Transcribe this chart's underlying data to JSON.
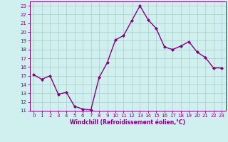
{
  "x": [
    0,
    1,
    2,
    3,
    4,
    5,
    6,
    7,
    8,
    9,
    10,
    11,
    12,
    13,
    14,
    15,
    16,
    17,
    18,
    19,
    20,
    21,
    22,
    23
  ],
  "y": [
    15.1,
    14.6,
    15.0,
    12.9,
    13.1,
    11.5,
    11.2,
    11.1,
    14.8,
    16.5,
    19.1,
    19.6,
    21.3,
    23.0,
    21.4,
    20.4,
    18.3,
    18.0,
    18.4,
    18.9,
    17.7,
    17.1,
    15.9,
    15.9
  ],
  "line_color": "#800080",
  "marker": "D",
  "markersize": 2,
  "linewidth": 1.0,
  "bg_color": "#d0f0f0",
  "grid_color": "#b0c8c8",
  "xlabel": "Windchill (Refroidissement éolien,°C)",
  "ylabel": "",
  "ylim": [
    11,
    23.5
  ],
  "xlim": [
    -0.5,
    23.5
  ],
  "yticks": [
    11,
    12,
    13,
    14,
    15,
    16,
    17,
    18,
    19,
    20,
    21,
    22,
    23
  ],
  "xticks": [
    0,
    1,
    2,
    3,
    4,
    5,
    6,
    7,
    8,
    9,
    10,
    11,
    12,
    13,
    14,
    15,
    16,
    17,
    18,
    19,
    20,
    21,
    22,
    23
  ],
  "tick_color": "#800080",
  "label_color": "#800080",
  "xlabel_fontsize": 5.5,
  "tick_fontsize": 5.0
}
